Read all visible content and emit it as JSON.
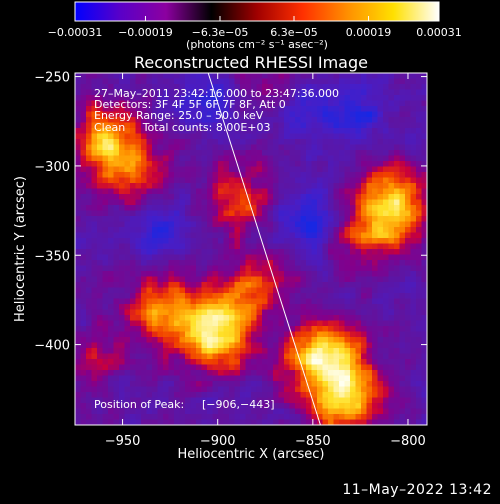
{
  "chart_data": {
    "type": "heatmap",
    "title": "Reconstructed RHESSI Image",
    "xlabel": "Heliocentric X (arcsec)",
    "ylabel": "Heliocentric Y (arcsec)",
    "xlim": [
      -975,
      -790
    ],
    "ylim": [
      -445,
      -248
    ],
    "x_ticks": [
      -950,
      -900,
      -850,
      -800
    ],
    "x_tick_labels": [
      "−950",
      "−900",
      "−850",
      "−800"
    ],
    "y_ticks": [
      -250,
      -300,
      -350,
      -400
    ],
    "y_tick_labels": [
      "−250",
      "−300",
      "−350",
      "−400"
    ],
    "colorbar": {
      "min": -0.00031,
      "max": 0.00031,
      "tick_values": [
        -0.00031,
        -0.00019,
        -6.3e-05,
        6.3e-05,
        0.00019,
        0.00031
      ],
      "tick_labels": [
        "−0.00031",
        "−0.00019",
        "−6.3e−05",
        "6.3e−05",
        "0.00019",
        "0.00031"
      ],
      "unit_label": "(photons cm⁻² s⁻¹ asec⁻²)",
      "colors": [
        "#0000ff",
        "#5a00c8",
        "#8c00a0",
        "#000000",
        "#a00000",
        "#ff3000",
        "#ff9000",
        "#ffe000",
        "#ffffff"
      ]
    },
    "annotations": [
      "27–May–2011 23:42:16.000 to 23:47:36.000",
      "Detectors: 3F 4F 5F 6F 7F 8F, Att 0",
      "Energy Range: 25.0 – 50.0 keV",
      "Clean     Total counts: 8.00E+03"
    ],
    "peak_label": "Position of Peak:",
    "peak_value": "[−906,−443]",
    "limb_line": [
      [
        -905,
        -248
      ],
      [
        -846,
        -445
      ]
    ],
    "bright_sources": [
      {
        "x": -900,
        "y": -395,
        "strength": 0.95
      },
      {
        "x": -845,
        "y": -405,
        "strength": 1.0
      },
      {
        "x": -833,
        "y": -430,
        "strength": 0.9
      },
      {
        "x": -928,
        "y": -380,
        "strength": 0.7
      },
      {
        "x": -880,
        "y": -370,
        "strength": 0.6
      },
      {
        "x": -958,
        "y": -285,
        "strength": 0.75
      },
      {
        "x": -945,
        "y": -305,
        "strength": 0.5
      },
      {
        "x": -808,
        "y": -320,
        "strength": 0.85
      },
      {
        "x": -820,
        "y": -340,
        "strength": 0.5
      },
      {
        "x": -888,
        "y": -318,
        "strength": 0.55
      },
      {
        "x": -868,
        "y": -255,
        "strength": 0.35
      },
      {
        "x": -965,
        "y": -410,
        "strength": 0.3
      }
    ],
    "dim_sources": [
      {
        "x": -852,
        "y": -330,
        "strength": 0.9
      },
      {
        "x": -855,
        "y": -268,
        "strength": 0.8
      },
      {
        "x": -905,
        "y": -265,
        "strength": 0.6
      },
      {
        "x": -930,
        "y": -335,
        "strength": 0.7
      },
      {
        "x": -825,
        "y": -270,
        "strength": 0.6
      },
      {
        "x": -870,
        "y": -385,
        "strength": 0.4
      }
    ]
  },
  "footer_timestamp": "11–May–2022 13:42"
}
